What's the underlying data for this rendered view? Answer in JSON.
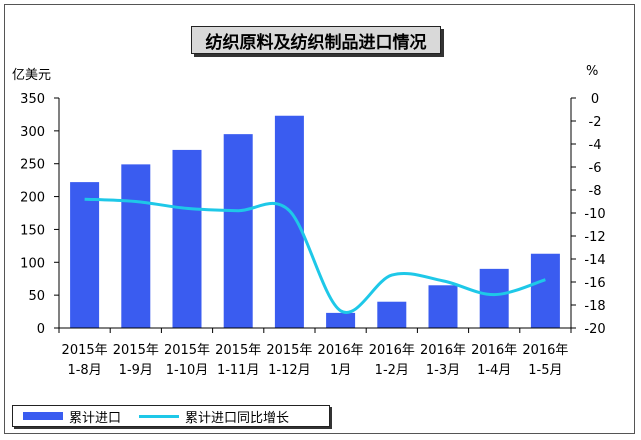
{
  "chart_data": {
    "type": "bar",
    "title": "纺织原料及纺织制品进口情况",
    "categories": [
      [
        "2015年",
        "1-8月"
      ],
      [
        "2015年",
        "1-9月"
      ],
      [
        "2015年",
        "1-10月"
      ],
      [
        "2015年",
        "1-11月"
      ],
      [
        "2015年",
        "1-12月"
      ],
      [
        "2016年",
        "1月"
      ],
      [
        "2016年",
        "1-2月"
      ],
      [
        "2016年",
        "1-3月"
      ],
      [
        "2016年",
        "1-4月"
      ],
      [
        "2016年",
        "1-5月"
      ]
    ],
    "left_axis_unit": "亿美元",
    "right_axis_unit": "%",
    "ylim": [
      0,
      350
    ],
    "yticks": [
      0,
      50,
      100,
      150,
      200,
      250,
      300,
      350
    ],
    "y2lim": [
      -20,
      0
    ],
    "y2ticks": [
      0,
      -2,
      -4,
      -6,
      -8,
      -10,
      -12,
      -14,
      -16,
      -18,
      -20
    ],
    "series": [
      {
        "name": "累计进口",
        "type": "bar",
        "axis": "left",
        "color": "#3a5cf0",
        "values": [
          222,
          249,
          271,
          295,
          323,
          23,
          40,
          65,
          90,
          113
        ]
      },
      {
        "name": "累计进口同比增长",
        "type": "line",
        "axis": "right",
        "color": "#1ec8e8",
        "values": [
          -8.8,
          -9.0,
          -9.6,
          -9.8,
          -9.8,
          -18.5,
          -15.4,
          -15.9,
          -17.1,
          -15.8
        ]
      }
    ],
    "legend_position": "bottom-left",
    "grid": false
  }
}
